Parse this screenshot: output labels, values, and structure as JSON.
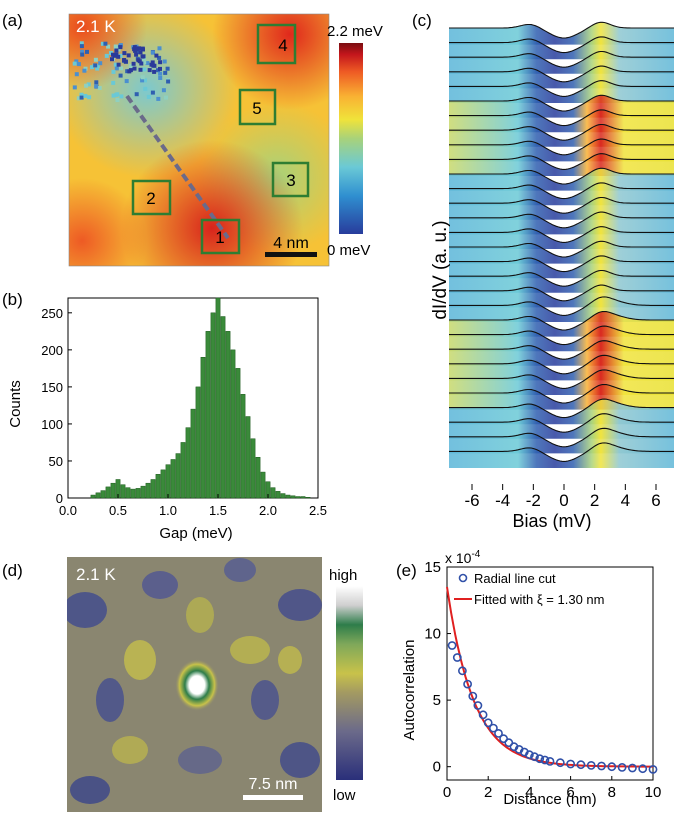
{
  "colors": {
    "gap_scale": [
      "#283c9c",
      "#2f8fd0",
      "#6ac9d6",
      "#a8d27a",
      "#f0e33a",
      "#f9b233",
      "#ee5a24",
      "#c4161c",
      "#7a0d10"
    ],
    "corr_scale": [
      "#2a2f7a",
      "#5a5e8c",
      "#8b8870",
      "#c8c24a",
      "#7fa85a",
      "#2e7d4a",
      "#d8d8d8",
      "#ffffff"
    ],
    "hist_bar": "#3a8a3a",
    "hist_edge": "#1e5a1e",
    "box": "#2e7d32",
    "marker": "#3050a8",
    "fit": "#e02020"
  },
  "panel_a": {
    "letter": "(a)",
    "temperature": "2.1 K",
    "scale_bar": "4 nm",
    "colorbar_max": "2.2 meV",
    "colorbar_min": "0 meV",
    "boxes": [
      "1",
      "2",
      "3",
      "4",
      "5"
    ]
  },
  "panel_b": {
    "letter": "(b)",
    "xlabel": "Gap (meV)",
    "ylabel": "Counts",
    "xticks": [
      "0.0",
      "0.5",
      "1.0",
      "1.5",
      "2.0",
      "2.5"
    ],
    "yticks": [
      "0",
      "50",
      "100",
      "150",
      "200",
      "250"
    ]
  },
  "panel_c": {
    "letter": "(c)",
    "xlabel": "Bias (mV)",
    "ylabel": "dI/dV (a. u.)",
    "xticks": [
      "-6",
      "-4",
      "-2",
      "0",
      "2",
      "4",
      "6"
    ]
  },
  "panel_d": {
    "letter": "(d)",
    "temperature": "2.1 K",
    "scale_bar": "7.5 nm",
    "colorbar_max": "high",
    "colorbar_min": "low"
  },
  "panel_e": {
    "letter": "(e)",
    "xlabel": "Distance (nm)",
    "ylabel": "Autocorrelation",
    "exponent": "x 10",
    "exponent_power": "-4",
    "xticks": [
      "0",
      "2",
      "4",
      "6",
      "8",
      "10"
    ],
    "yticks": [
      "0",
      "5",
      "10",
      "15"
    ],
    "legend_points": "Radial line cut",
    "legend_fit": "Fitted with ξ = 1.30 nm"
  },
  "chart_data": [
    {
      "type": "heatmap",
      "panel": "a",
      "colorbar_range": [
        0,
        2.2
      ],
      "unit": "meV",
      "boxes": [
        {
          "label": "1"
        },
        {
          "label": "2"
        },
        {
          "label": "3"
        },
        {
          "label": "4"
        },
        {
          "label": "5"
        }
      ]
    },
    {
      "type": "bar",
      "panel": "b",
      "xlim": [
        0,
        2.5
      ],
      "ylim": [
        0,
        270
      ],
      "x": [
        0.25,
        0.3,
        0.35,
        0.4,
        0.45,
        0.5,
        0.55,
        0.6,
        0.65,
        0.7,
        0.75,
        0.8,
        0.85,
        0.9,
        0.95,
        1.0,
        1.05,
        1.1,
        1.15,
        1.2,
        1.25,
        1.3,
        1.35,
        1.4,
        1.45,
        1.5,
        1.55,
        1.6,
        1.65,
        1.7,
        1.75,
        1.8,
        1.85,
        1.9,
        1.95,
        2.0,
        2.05,
        2.1,
        2.15,
        2.2,
        2.25,
        2.3,
        2.35,
        2.4
      ],
      "values": [
        4,
        7,
        10,
        15,
        20,
        25,
        18,
        14,
        12,
        13,
        16,
        20,
        25,
        32,
        38,
        45,
        52,
        60,
        75,
        95,
        120,
        150,
        190,
        225,
        250,
        270,
        245,
        225,
        200,
        175,
        140,
        110,
        80,
        55,
        35,
        22,
        14,
        9,
        6,
        4,
        3,
        2,
        2,
        1
      ]
    },
    {
      "type": "line",
      "panel": "c",
      "xlim": [
        -7.5,
        7.5
      ],
      "series_count": 30
    },
    {
      "type": "heatmap",
      "panel": "d"
    },
    {
      "type": "scatter",
      "panel": "e",
      "xlim": [
        0,
        10
      ],
      "ylim": [
        -1,
        15
      ],
      "series": [
        {
          "name": "Radial line cut",
          "x": [
            0.25,
            0.5,
            0.75,
            1.0,
            1.25,
            1.5,
            1.75,
            2.0,
            2.25,
            2.5,
            2.75,
            3.0,
            3.25,
            3.5,
            3.75,
            4.0,
            4.25,
            4.5,
            4.75,
            5.0,
            5.5,
            6.0,
            6.5,
            7.0,
            7.5,
            8.0,
            8.5,
            9.0,
            9.5,
            10.0
          ],
          "y": [
            9.1,
            8.2,
            7.2,
            6.2,
            5.3,
            4.6,
            3.9,
            3.3,
            2.9,
            2.5,
            2.1,
            1.8,
            1.5,
            1.3,
            1.1,
            0.9,
            0.75,
            0.6,
            0.5,
            0.4,
            0.3,
            0.2,
            0.15,
            0.1,
            0.05,
            0.0,
            -0.05,
            -0.1,
            -0.15,
            -0.2
          ]
        },
        {
          "name": "Fitted with ξ = 1.30 nm",
          "xi": 1.3,
          "amplitude": 13.5
        }
      ]
    }
  ]
}
